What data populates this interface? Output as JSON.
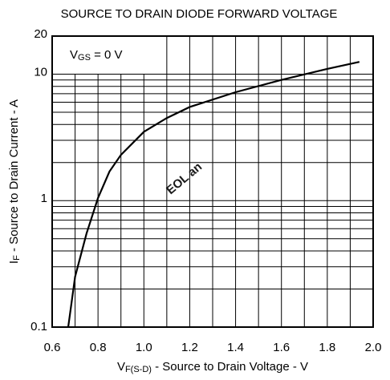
{
  "chart_data": {
    "type": "line",
    "title": "SOURCE TO DRAIN DIODE FORWARD VOLTAGE",
    "xlabel": {
      "main": "V",
      "sub": "F(S-D)",
      "rest": " - Source to Drain Voltage - V"
    },
    "ylabel": {
      "main": "I",
      "sub": "F",
      "rest": " - Source to Drain Current - A"
    },
    "annotation": {
      "main": "V",
      "sub": "GS",
      "rest": " = 0 V"
    },
    "watermark": "EOL an",
    "x": [
      0.67,
      0.7,
      0.75,
      0.8,
      0.85,
      0.9,
      1.0,
      1.1,
      1.2,
      1.4,
      1.6,
      1.8,
      1.94
    ],
    "series": [
      {
        "color": "#000000",
        "values": [
          0.1,
          0.25,
          0.55,
          1.05,
          1.7,
          2.3,
          3.5,
          4.5,
          5.5,
          7.2,
          9.0,
          11,
          12.5
        ]
      }
    ],
    "xlim": [
      0.6,
      2.0
    ],
    "xticks": [
      0.6,
      0.8,
      {
        "value": 1.0,
        "label": "1.0"
      },
      1.2,
      1.4,
      1.6,
      1.8,
      {
        "value": 2.0,
        "label": "2.0"
      }
    ],
    "x_minor_ticks": [
      0.7,
      0.9,
      1.1,
      1.3,
      1.5,
      1.7,
      1.9
    ],
    "ylim": [
      0.1,
      20
    ],
    "yticks": [
      0.1,
      1,
      10,
      20
    ],
    "y_minor_ticks": [
      0.2,
      0.3,
      0.4,
      0.5,
      0.6,
      0.7,
      0.8,
      0.9,
      2,
      3,
      4,
      5,
      6,
      7,
      8,
      9
    ],
    "ylog": true,
    "grid": true
  }
}
